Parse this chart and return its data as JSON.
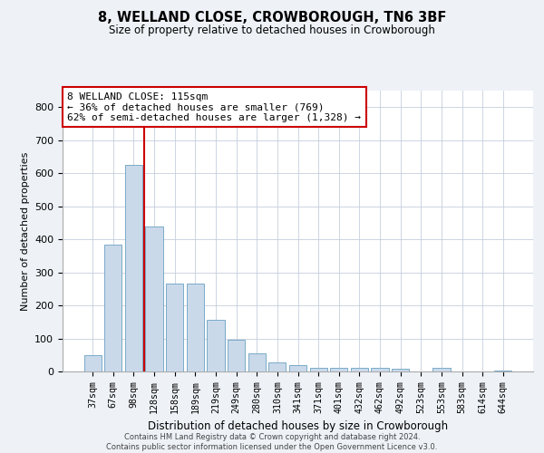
{
  "title": "8, WELLAND CLOSE, CROWBOROUGH, TN6 3BF",
  "subtitle": "Size of property relative to detached houses in Crowborough",
  "xlabel": "Distribution of detached houses by size in Crowborough",
  "ylabel": "Number of detached properties",
  "categories": [
    "37sqm",
    "67sqm",
    "98sqm",
    "128sqm",
    "158sqm",
    "189sqm",
    "219sqm",
    "249sqm",
    "280sqm",
    "310sqm",
    "341sqm",
    "371sqm",
    "401sqm",
    "432sqm",
    "462sqm",
    "492sqm",
    "523sqm",
    "553sqm",
    "583sqm",
    "614sqm",
    "644sqm"
  ],
  "values": [
    50,
    385,
    625,
    440,
    265,
    265,
    155,
    95,
    55,
    28,
    18,
    12,
    12,
    12,
    12,
    8,
    0,
    10,
    0,
    0,
    2
  ],
  "bar_color": "#c9d9ea",
  "bar_edge_color": "#7aaac8",
  "annotation_text": "8 WELLAND CLOSE: 115sqm\n← 36% of detached houses are smaller (769)\n62% of semi-detached houses are larger (1,328) →",
  "annotation_box_color": "white",
  "annotation_box_edge_color": "#cc0000",
  "vline_color": "#cc0000",
  "vline_x_index": 2.5,
  "ylim": [
    0,
    850
  ],
  "yticks": [
    0,
    100,
    200,
    300,
    400,
    500,
    600,
    700,
    800
  ],
  "footer_line1": "Contains HM Land Registry data © Crown copyright and database right 2024.",
  "footer_line2": "Contains public sector information licensed under the Open Government Licence v3.0.",
  "background_color": "#eef2f7",
  "plot_background_color": "#ffffff",
  "grid_color": "#c5cedc"
}
